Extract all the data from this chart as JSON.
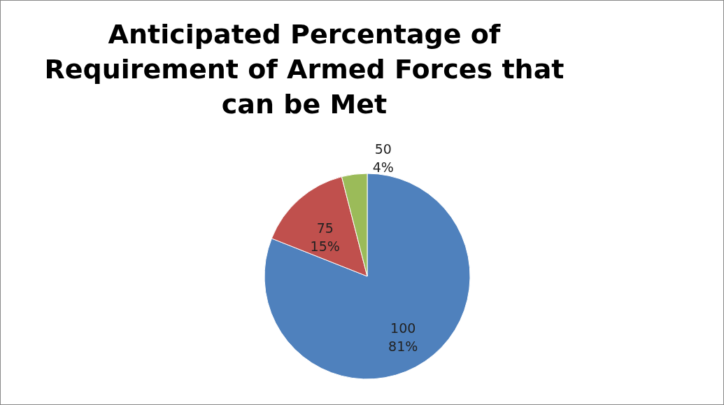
{
  "chart_data": {
    "type": "pie",
    "title": "Anticipated Percentage of Requirement of Armed Forces that can be Met",
    "categories": [
      "100",
      "75",
      "50"
    ],
    "values": [
      81,
      15,
      4
    ],
    "value_labels": [
      "81%",
      "15%",
      "4%"
    ],
    "colors": [
      "#4f81bd",
      "#c0504d",
      "#9bbb59"
    ],
    "legend": false
  }
}
